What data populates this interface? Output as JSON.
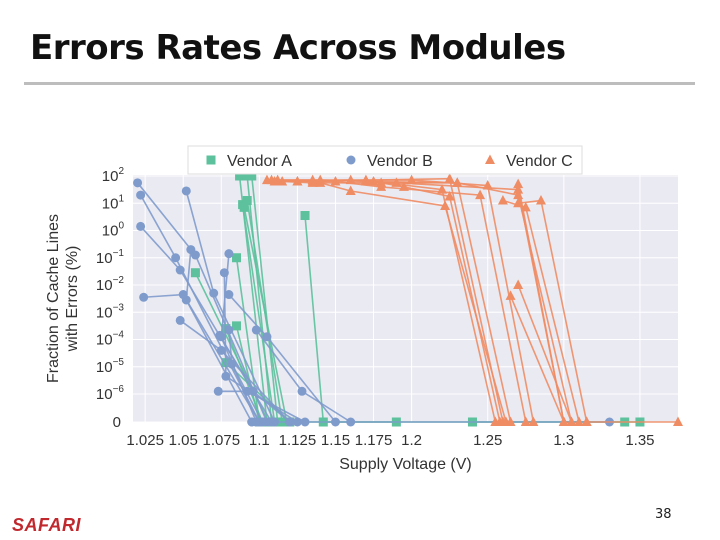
{
  "slide": {
    "title": "Errors Rates Across Modules",
    "logo": "SAFARI",
    "page_number": "38"
  },
  "chart_data": {
    "type": "scatter",
    "xlabel": "Supply Voltage (V)",
    "ylabel_lines": [
      "Fraction of Cache Lines",
      "with Errors (%)"
    ],
    "xlim": [
      1.017,
      1.375
    ],
    "x_ticks": [
      1.025,
      1.05,
      1.075,
      1.1,
      1.125,
      1.15,
      1.175,
      1.2,
      1.25,
      1.3,
      1.35
    ],
    "x_tick_labels": [
      "1.025",
      "1.05",
      "1.075",
      "1.1",
      "1.125",
      "1.15",
      "1.175",
      "1.2",
      "1.25",
      "1.3",
      "1.35"
    ],
    "y_scale": "log with zero baseline",
    "y_ticks": [
      2,
      1,
      0,
      -1,
      -2,
      -3,
      -4,
      -5,
      -6
    ],
    "y_tick_mantissa": [
      "10",
      "10",
      "10",
      "10",
      "10",
      "10",
      "10",
      "10",
      "10"
    ],
    "y_tick_exponents": [
      "2",
      "1",
      "0",
      "−1",
      "−2",
      "−3",
      "−4",
      "−5",
      "−6"
    ],
    "y_zero_label": "0",
    "grid": true,
    "legend_position": "top",
    "series": [
      {
        "name": "Vendor A",
        "color": "#5cc19c",
        "marker": "square",
        "lines": [
          [
            [
              1.087,
              2.0
            ],
            [
              1.105,
              "0"
            ],
            [
              1.35,
              "0"
            ]
          ],
          [
            [
              1.092,
              2.0
            ],
            [
              1.108,
              "0"
            ]
          ],
          [
            [
              1.095,
              2.0
            ],
            [
              1.112,
              "0"
            ]
          ],
          [
            [
              1.089,
              0.95
            ],
            [
              1.11,
              "0"
            ]
          ],
          [
            [
              1.092,
              1.1
            ],
            [
              1.115,
              "0"
            ]
          ],
          [
            [
              1.09,
              0.85
            ],
            [
              1.118,
              "0"
            ]
          ],
          [
            [
              1.085,
              -1.0
            ],
            [
              1.1,
              "0"
            ]
          ],
          [
            [
              1.058,
              -1.55
            ],
            [
              1.106,
              "0"
            ]
          ],
          [
            [
              1.078,
              -3.6
            ],
            [
              1.102,
              "0"
            ]
          ],
          [
            [
              1.085,
              -3.5
            ],
            [
              1.1,
              "0"
            ]
          ],
          [
            [
              1.078,
              -4.85
            ],
            [
              1.12,
              "0"
            ]
          ],
          [
            [
              1.13,
              0.55
            ],
            [
              1.142,
              "0"
            ],
            [
              1.19,
              "0"
            ]
          ],
          [
            [
              1.24,
              "0"
            ],
            [
              1.34,
              "0"
            ]
          ]
        ]
      },
      {
        "name": "Vendor B",
        "color": "#7f9bcc",
        "marker": "circle",
        "lines": [
          [
            [
              1.02,
              1.75
            ],
            [
              1.058,
              -0.9
            ],
            [
              1.105,
              "0"
            ]
          ],
          [
            [
              1.022,
              1.3
            ],
            [
              1.045,
              -1.0
            ],
            [
              1.1,
              "0"
            ]
          ],
          [
            [
              1.022,
              0.15
            ],
            [
              1.048,
              -1.45
            ],
            [
              1.108,
              "0"
            ]
          ],
          [
            [
              1.024,
              -2.45
            ],
            [
              1.05,
              -2.35
            ],
            [
              1.1,
              "0"
            ]
          ],
          [
            [
              1.052,
              1.45
            ],
            [
              1.07,
              -2.3
            ],
            [
              1.11,
              "0"
            ]
          ],
          [
            [
              1.055,
              -0.7
            ],
            [
              1.052,
              -2.55
            ],
            [
              1.095,
              "0"
            ]
          ],
          [
            [
              1.048,
              -3.3
            ],
            [
              1.075,
              -4.4
            ],
            [
              1.12,
              "0"
            ]
          ],
          [
            [
              1.08,
              -0.85
            ],
            [
              1.075,
              -3.9
            ],
            [
              1.098,
              "0"
            ]
          ],
          [
            [
              1.077,
              -1.55
            ],
            [
              1.078,
              -5.35
            ],
            [
              1.125,
              "0"
            ]
          ],
          [
            [
              1.08,
              -3.65
            ],
            [
              1.082,
              -4.9
            ],
            [
              1.102,
              "0"
            ]
          ],
          [
            [
              1.073,
              -5.9
            ],
            [
              1.092,
              -5.9
            ],
            [
              1.13,
              "0"
            ]
          ],
          [
            [
              1.074,
              -3.85
            ],
            [
              1.096,
              -5.9
            ],
            [
              1.12,
              "0"
            ]
          ],
          [
            [
              1.08,
              -2.35
            ],
            [
              1.105,
              -3.9
            ],
            [
              1.15,
              "0"
            ]
          ],
          [
            [
              1.098,
              -3.65
            ],
            [
              1.128,
              -5.9
            ],
            [
              1.16,
              "0"
            ]
          ],
          [
            [
              1.095,
              "0"
            ],
            [
              1.33,
              "0"
            ]
          ]
        ]
      },
      {
        "name": "Vendor C",
        "color": "#ef8c64",
        "marker": "triangle",
        "lines": [
          [
            [
              1.105,
              1.85
            ],
            [
              1.125,
              1.8
            ],
            [
              1.225,
              1.9
            ],
            [
              1.26,
              "0"
            ]
          ],
          [
            [
              1.108,
              1.85
            ],
            [
              1.135,
              1.85
            ],
            [
              1.2,
              1.85
            ],
            [
              1.25,
              1.65
            ],
            [
              1.28,
              "0"
            ]
          ],
          [
            [
              1.112,
              1.85
            ],
            [
              1.14,
              1.85
            ],
            [
              1.17,
              1.8
            ],
            [
              1.23,
              1.75
            ],
            [
              1.265,
              "0"
            ]
          ],
          [
            [
              1.115,
              1.8
            ],
            [
              1.135,
              1.75
            ],
            [
              1.19,
              1.75
            ],
            [
              1.27,
              1.5
            ],
            [
              1.3,
              "0"
            ]
          ],
          [
            [
              1.11,
              1.8
            ],
            [
              1.16,
              1.85
            ],
            [
              1.175,
              1.8
            ],
            [
              1.22,
              1.5
            ],
            [
              1.255,
              "0"
            ]
          ],
          [
            [
              1.125,
              1.8
            ],
            [
              1.15,
              1.8
            ],
            [
              1.18,
              1.6
            ],
            [
              1.245,
              1.3
            ],
            [
              1.275,
              "0"
            ]
          ],
          [
            [
              1.135,
              1.8
            ],
            [
              1.17,
              1.85
            ],
            [
              1.195,
              1.6
            ],
            [
              1.225,
              1.25
            ],
            [
              1.258,
              "0"
            ]
          ],
          [
            [
              1.14,
              1.75
            ],
            [
              1.16,
              1.45
            ],
            [
              1.222,
              0.9
            ],
            [
              1.262,
              "0"
            ]
          ],
          [
            [
              1.18,
              1.75
            ],
            [
              1.23,
              1.75
            ],
            [
              1.27,
              1.3
            ],
            [
              1.305,
              "0"
            ]
          ],
          [
            [
              1.26,
              1.1
            ],
            [
              1.275,
              0.85
            ],
            [
              1.31,
              "0"
            ]
          ],
          [
            [
              1.27,
              1.0
            ],
            [
              1.285,
              1.1
            ],
            [
              1.315,
              "0"
            ]
          ],
          [
            [
              1.27,
              1.7
            ],
            [
              1.3,
              "0"
            ]
          ],
          [
            [
              1.27,
              -2.0
            ],
            [
              1.305,
              "0"
            ]
          ],
          [
            [
              1.265,
              -2.4
            ],
            [
              1.3,
              "0"
            ]
          ],
          [
            [
              1.315,
              "0"
            ],
            [
              1.375,
              "0"
            ]
          ]
        ]
      }
    ]
  }
}
